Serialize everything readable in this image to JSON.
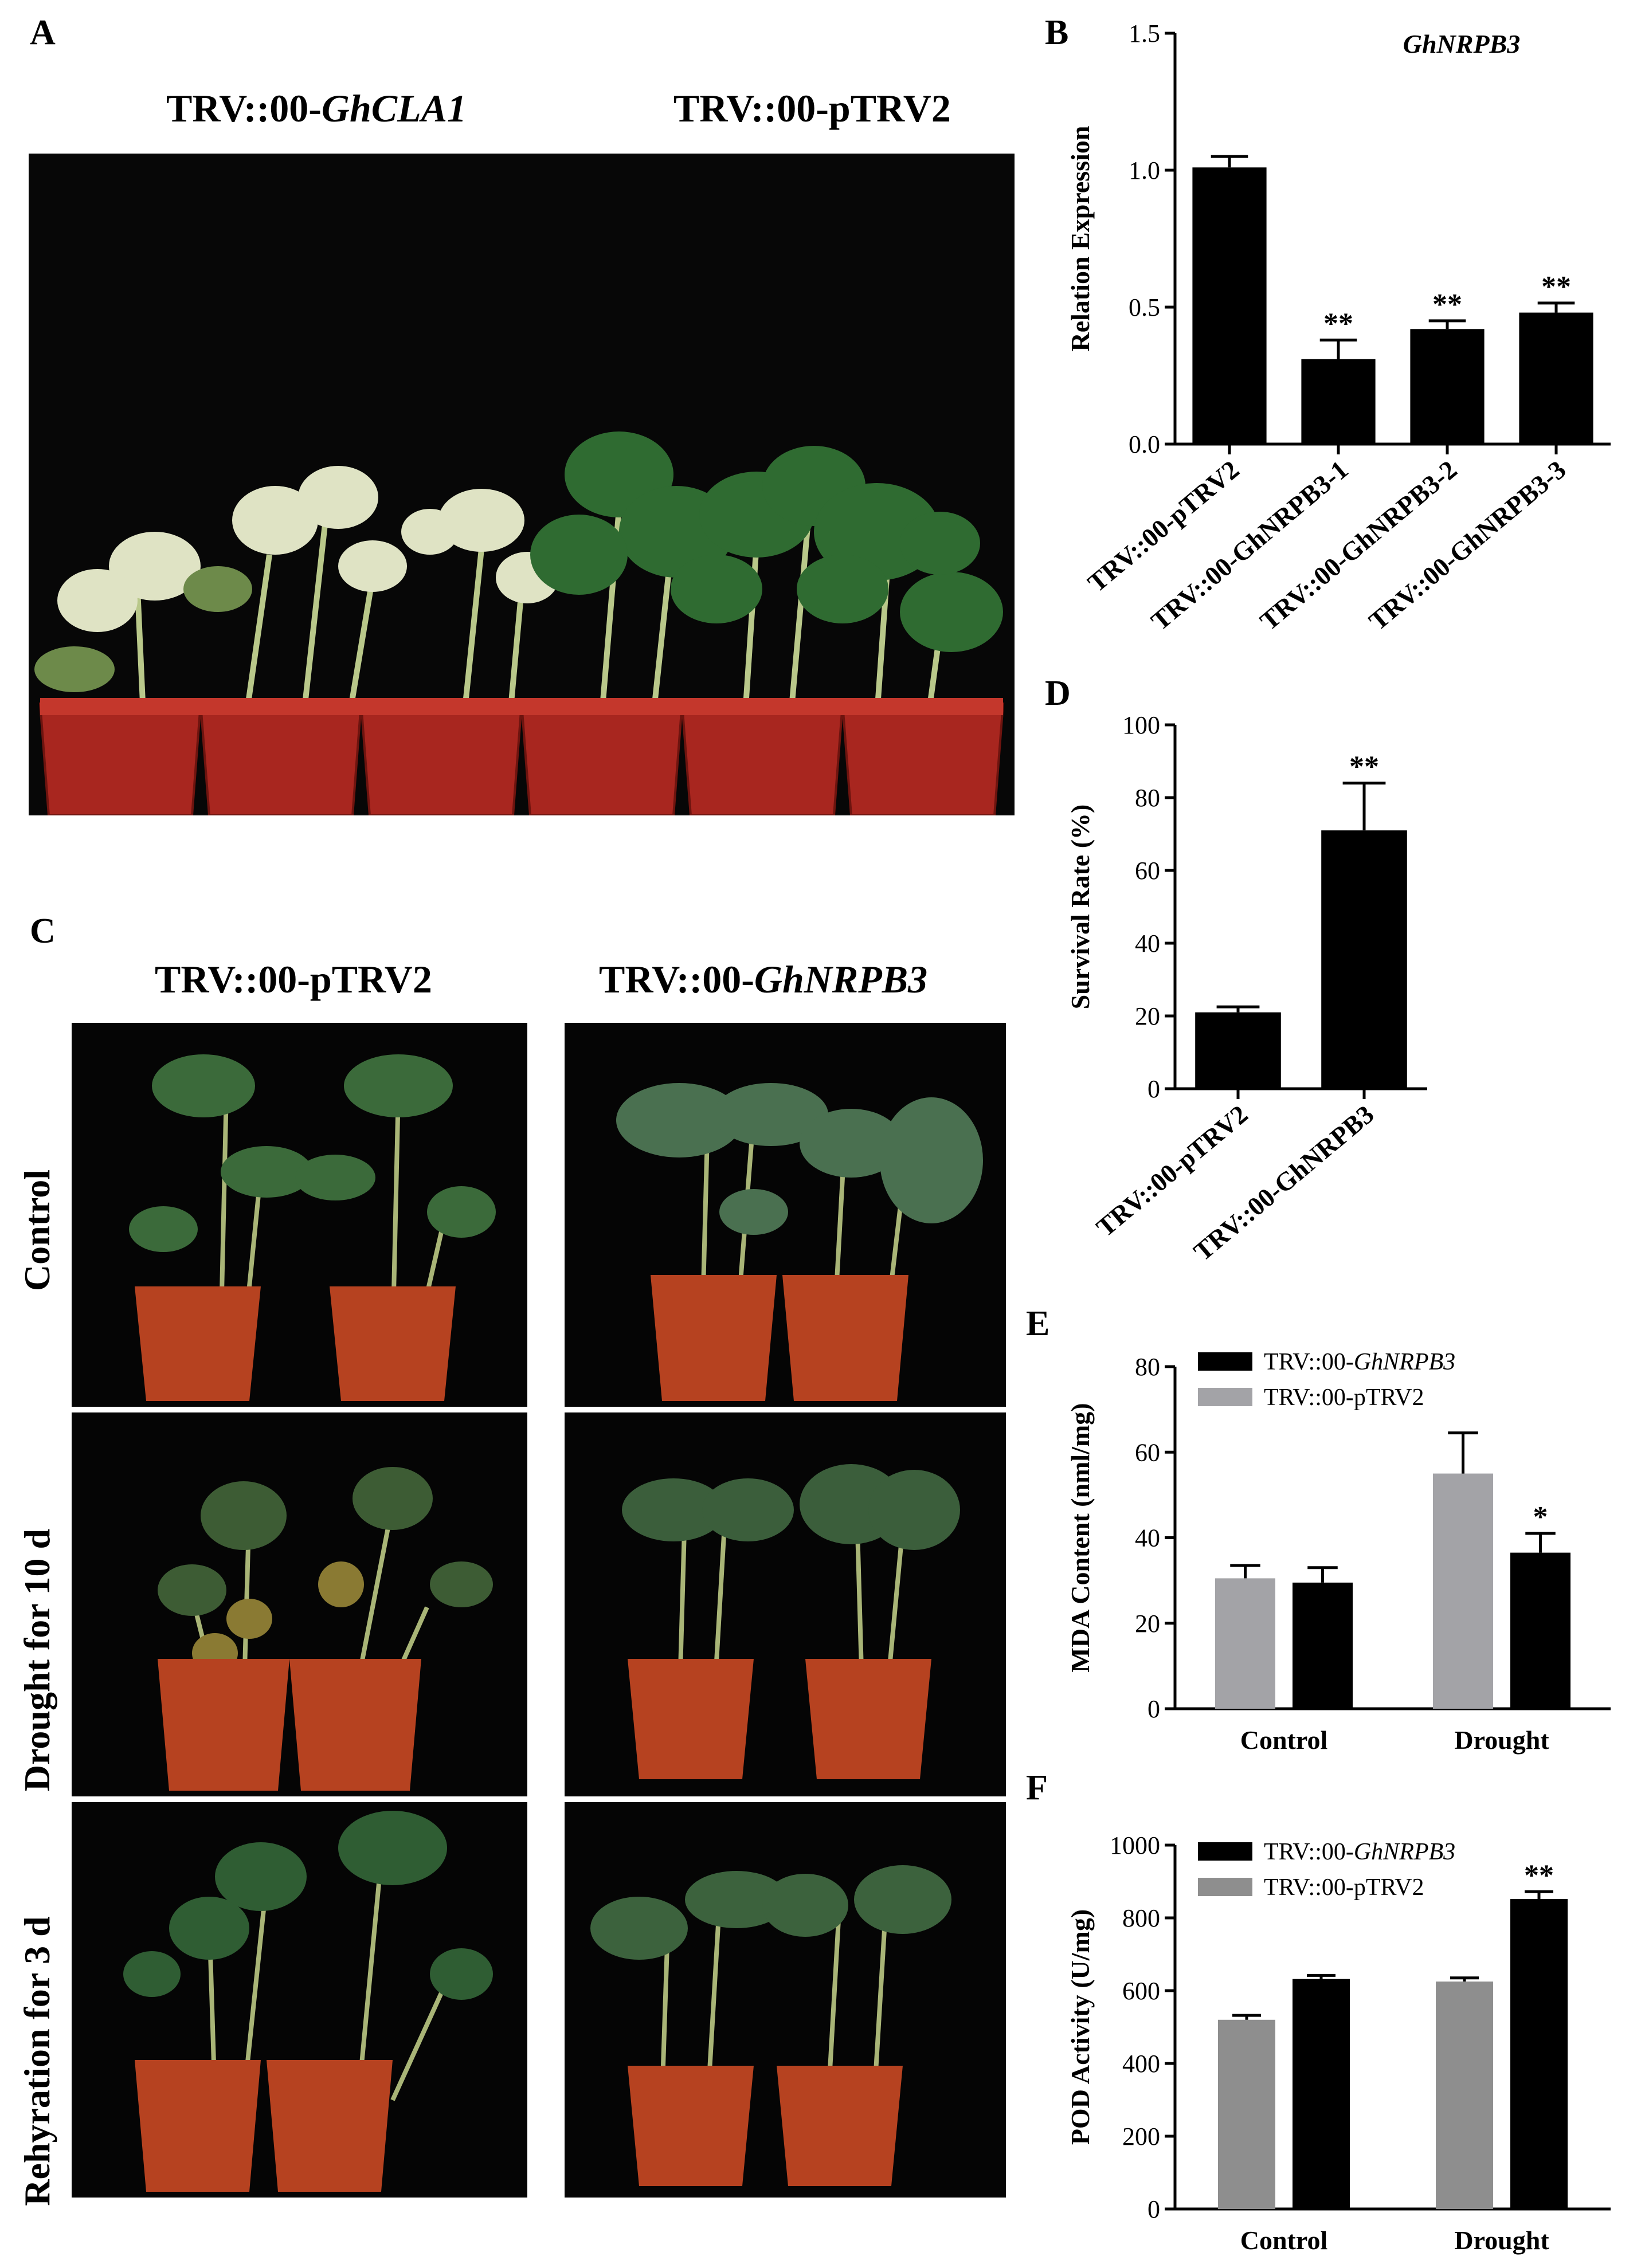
{
  "panels": {
    "A": {
      "letter": "A",
      "labels": [
        {
          "prefix": "TRV::00-",
          "italic": "GhCLA1"
        },
        {
          "prefix": "TRV::00-pTRV2",
          "italic": ""
        }
      ]
    },
    "C": {
      "letter": "C",
      "columns": [
        {
          "prefix": "TRV::00-pTRV2",
          "italic": ""
        },
        {
          "prefix": "TRV::00-",
          "italic": "GhNRPB3"
        }
      ],
      "rows": [
        "Control",
        "Drought for 10 d",
        "Rehyration for 3 d"
      ]
    }
  },
  "chart_data": [
    {
      "id": "B",
      "letter": "B",
      "type": "bar",
      "title": "GhNRPB3",
      "ylabel": "Relation Expression",
      "ylim": [
        0,
        1.5
      ],
      "yticks": [
        "0.0",
        "0.5",
        "1.0",
        "1.5"
      ],
      "categories": [
        "TRV::00-pTRV2",
        "TRV::00-GhNRPB3-1",
        "TRV::00-GhNRPB3-2",
        "TRV::00-GhNRPB3-3"
      ],
      "values": [
        1.01,
        0.31,
        0.42,
        0.48
      ],
      "errors": [
        0.04,
        0.07,
        0.03,
        0.035
      ],
      "significance": [
        "",
        "**",
        "**",
        "**"
      ],
      "color": "#000000"
    },
    {
      "id": "D",
      "letter": "D",
      "type": "bar",
      "title": "",
      "ylabel": "Survival Rate (%)",
      "ylim": [
        0,
        100
      ],
      "yticks": [
        "0",
        "20",
        "40",
        "60",
        "80",
        "100"
      ],
      "categories": [
        "TRV::00-pTRV2",
        "TRV::00-GhNRPB3"
      ],
      "values": [
        21,
        71
      ],
      "errors": [
        1.5,
        13
      ],
      "significance": [
        "",
        "**"
      ],
      "color": "#000000"
    },
    {
      "id": "E",
      "letter": "E",
      "type": "bar",
      "title": "",
      "ylabel": "MDA Content (nml/mg)",
      "ylim": [
        0,
        80
      ],
      "yticks": [
        "0",
        "20",
        "40",
        "60",
        "80"
      ],
      "categories": [
        "Control",
        "Drought"
      ],
      "legend_position": "top-left",
      "series": [
        {
          "name_prefix": "TRV::00-pTRV2",
          "name_italic": "",
          "color": "#a3a3a7",
          "values": [
            30.5,
            55
          ],
          "errors": [
            3,
            9.5
          ],
          "significance": [
            "",
            ""
          ]
        },
        {
          "name_prefix": "TRV::00-",
          "name_italic": "GhNRPB3",
          "color": "#000000",
          "values": [
            29.5,
            36.5
          ],
          "errors": [
            3.5,
            4.5
          ],
          "significance": [
            "",
            "*"
          ]
        }
      ],
      "legend_order": [
        1,
        0
      ]
    },
    {
      "id": "F",
      "letter": "F",
      "type": "bar",
      "title": "",
      "ylabel": "POD Activity (U/mg)",
      "ylim": [
        0,
        1000
      ],
      "yticks": [
        "0",
        "200",
        "400",
        "600",
        "800",
        "1000"
      ],
      "categories": [
        "Control",
        "Drought"
      ],
      "legend_position": "top-left",
      "series": [
        {
          "name_prefix": "TRV::00-pTRV2",
          "name_italic": "",
          "color": "#8e8e8e",
          "values": [
            520,
            625
          ],
          "errors": [
            12,
            10
          ],
          "significance": [
            "",
            ""
          ]
        },
        {
          "name_prefix": "TRV::00-",
          "name_italic": "GhNRPB3",
          "color": "#000000",
          "values": [
            632,
            852
          ],
          "errors": [
            10,
            20
          ],
          "significance": [
            "",
            "**"
          ]
        }
      ],
      "legend_order": [
        1,
        0
      ]
    }
  ]
}
